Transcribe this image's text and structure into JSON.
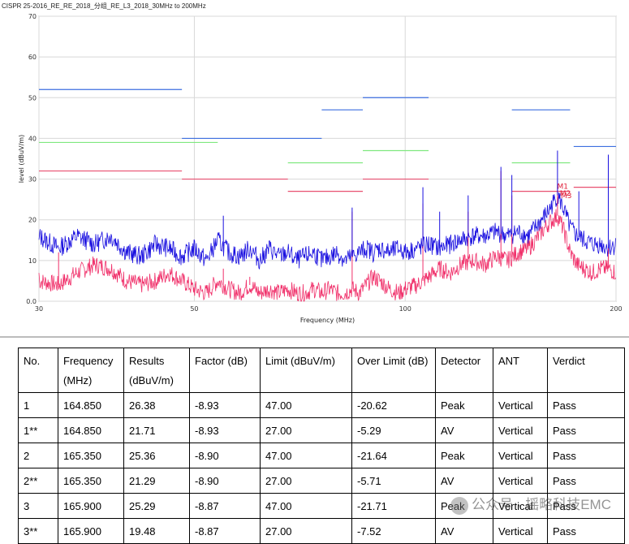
{
  "chart_data": {
    "type": "line",
    "title": "CISPR 25-2016_RE_RE_2018_分组_RE_L3_2018_30MHz to 200MHz",
    "xlabel": "Frequency (MHz)",
    "ylabel": "level (dBuV/m)",
    "x_scale": "log",
    "xlim": [
      30,
      200
    ],
    "ylim": [
      0,
      70
    ],
    "x_ticks": [
      "30",
      "50",
      "100",
      "200"
    ],
    "x_tick_values": [
      30,
      50,
      100,
      200
    ],
    "y_ticks": [
      "0.0",
      "10",
      "20",
      "30",
      "40",
      "50",
      "60",
      "70"
    ],
    "y_tick_values": [
      0,
      10,
      20,
      30,
      40,
      50,
      60,
      70
    ],
    "grid": true,
    "peak_limit_segments": [
      {
        "x": [
          30,
          48
        ],
        "y": 52
      },
      {
        "x": [
          48,
          76
        ],
        "y": 40
      },
      {
        "x": [
          76,
          87
        ],
        "y": 47
      },
      {
        "x": [
          87,
          108
        ],
        "y": 50
      },
      {
        "x": [
          142,
          172
        ],
        "y": 47
      },
      {
        "x": [
          174,
          200
        ],
        "y": 38
      }
    ],
    "quasi_peak_limit_segments": [
      {
        "x": [
          30,
          54
        ],
        "y": 39
      },
      {
        "x": [
          68,
          87
        ],
        "y": 34
      },
      {
        "x": [
          87,
          108
        ],
        "y": 37
      },
      {
        "x": [
          142,
          172
        ],
        "y": 34
      }
    ],
    "average_limit_segments": [
      {
        "x": [
          30,
          48
        ],
        "y": 32
      },
      {
        "x": [
          48,
          68
        ],
        "y": 30
      },
      {
        "x": [
          68,
          87
        ],
        "y": 27
      },
      {
        "x": [
          87,
          108
        ],
        "y": 30
      },
      {
        "x": [
          142,
          172
        ],
        "y": 27
      },
      {
        "x": [
          174,
          200
        ],
        "y": 28
      }
    ],
    "peak_trace": [
      [
        30,
        16
      ],
      [
        32,
        13
      ],
      [
        34,
        16
      ],
      [
        36,
        14
      ],
      [
        38,
        16
      ],
      [
        40,
        12
      ],
      [
        42,
        11
      ],
      [
        44,
        14
      ],
      [
        46,
        13
      ],
      [
        48,
        11
      ],
      [
        50,
        13
      ],
      [
        52,
        10
      ],
      [
        54,
        15
      ],
      [
        56,
        12
      ],
      [
        58,
        11
      ],
      [
        60,
        13
      ],
      [
        62,
        10
      ],
      [
        64,
        13
      ],
      [
        66,
        11
      ],
      [
        68,
        12
      ],
      [
        70,
        10
      ],
      [
        72,
        11
      ],
      [
        74,
        12
      ],
      [
        76,
        10
      ],
      [
        78,
        11
      ],
      [
        80,
        12
      ],
      [
        82,
        10
      ],
      [
        84,
        11
      ],
      [
        86,
        12
      ],
      [
        88,
        13
      ],
      [
        90,
        12
      ],
      [
        92,
        13
      ],
      [
        95,
        12
      ],
      [
        98,
        13
      ],
      [
        100,
        12
      ],
      [
        104,
        13
      ],
      [
        108,
        14
      ],
      [
        112,
        13
      ],
      [
        116,
        14
      ],
      [
        120,
        15
      ],
      [
        125,
        16
      ],
      [
        130,
        16
      ],
      [
        135,
        17
      ],
      [
        140,
        16
      ],
      [
        145,
        17
      ],
      [
        150,
        16
      ],
      [
        155,
        19
      ],
      [
        160,
        22
      ],
      [
        165,
        26
      ],
      [
        168,
        23
      ],
      [
        172,
        18
      ],
      [
        176,
        16
      ],
      [
        180,
        15
      ],
      [
        185,
        14
      ],
      [
        190,
        14
      ],
      [
        195,
        13
      ],
      [
        200,
        14
      ]
    ],
    "peak_spikes": [
      [
        55,
        21
      ],
      [
        84,
        23
      ],
      [
        106,
        28
      ],
      [
        112,
        22
      ],
      [
        123,
        26
      ],
      [
        137,
        33
      ],
      [
        142,
        31
      ],
      [
        165,
        37
      ],
      [
        177,
        27
      ],
      [
        195,
        36
      ]
    ],
    "average_trace": [
      [
        30,
        5
      ],
      [
        32,
        4
      ],
      [
        34,
        7
      ],
      [
        36,
        9
      ],
      [
        38,
        8
      ],
      [
        40,
        5
      ],
      [
        42,
        4
      ],
      [
        44,
        5
      ],
      [
        46,
        7
      ],
      [
        48,
        5
      ],
      [
        50,
        3
      ],
      [
        52,
        2
      ],
      [
        54,
        5
      ],
      [
        56,
        3
      ],
      [
        58,
        2
      ],
      [
        60,
        4
      ],
      [
        62,
        2
      ],
      [
        64,
        3
      ],
      [
        66,
        2
      ],
      [
        68,
        3
      ],
      [
        70,
        2
      ],
      [
        72,
        2
      ],
      [
        74,
        3
      ],
      [
        76,
        2
      ],
      [
        78,
        3
      ],
      [
        80,
        2
      ],
      [
        82,
        2
      ],
      [
        84,
        3
      ],
      [
        86,
        2
      ],
      [
        88,
        4
      ],
      [
        90,
        6
      ],
      [
        92,
        5
      ],
      [
        95,
        3
      ],
      [
        98,
        2
      ],
      [
        100,
        3
      ],
      [
        104,
        4
      ],
      [
        108,
        6
      ],
      [
        112,
        8
      ],
      [
        116,
        7
      ],
      [
        120,
        9
      ],
      [
        125,
        10
      ],
      [
        130,
        9
      ],
      [
        135,
        11
      ],
      [
        140,
        10
      ],
      [
        145,
        12
      ],
      [
        150,
        13
      ],
      [
        155,
        16
      ],
      [
        160,
        19
      ],
      [
        165,
        21
      ],
      [
        168,
        18
      ],
      [
        172,
        12
      ],
      [
        176,
        9
      ],
      [
        180,
        8
      ],
      [
        185,
        7
      ],
      [
        190,
        8
      ],
      [
        195,
        8
      ],
      [
        200,
        7
      ]
    ],
    "average_spikes": [
      [
        32,
        12
      ],
      [
        36,
        10
      ],
      [
        55,
        8
      ],
      [
        60,
        6
      ],
      [
        84,
        22
      ],
      [
        106,
        24
      ],
      [
        123,
        22
      ],
      [
        137,
        32
      ],
      [
        142,
        26
      ],
      [
        165,
        28
      ],
      [
        195,
        28
      ]
    ],
    "markers": [
      {
        "label": "M1",
        "x": 164.85,
        "y": 26.38
      },
      {
        "label": "M2",
        "x": 165.35,
        "y": 25.36
      },
      {
        "label": "M3",
        "x": 165.9,
        "y": 25.29
      }
    ],
    "colors": {
      "peak_trace": "#1a10e0",
      "average_trace": "#f0306a",
      "peak_limit": "#3d6fe0",
      "quasi_peak_limit": "#7fe87f",
      "average_limit": "#e85070",
      "grid": "#d8d8d8"
    }
  },
  "table": {
    "headers": [
      {
        "line1": "No.",
        "line2": ""
      },
      {
        "line1": "Frequency",
        "line2": "(MHz)"
      },
      {
        "line1": "Results",
        "line2": "(dBuV/m)"
      },
      {
        "line1": "Factor (dB)",
        "line2": ""
      },
      {
        "line1": "Limit (dBuV/m)",
        "line2": ""
      },
      {
        "line1": "Over Limit (dB)",
        "line2": ""
      },
      {
        "line1": "Detector",
        "line2": ""
      },
      {
        "line1": "ANT",
        "line2": ""
      },
      {
        "line1": "Verdict",
        "line2": ""
      }
    ],
    "rows": [
      [
        "1",
        "164.850",
        "26.38",
        "-8.93",
        "47.00",
        "-20.62",
        "Peak",
        "Vertical",
        "Pass"
      ],
      [
        "1**",
        "164.850",
        "21.71",
        "-8.93",
        "27.00",
        "-5.29",
        "AV",
        "Vertical",
        "Pass"
      ],
      [
        "2",
        "165.350",
        "25.36",
        "-8.90",
        "47.00",
        "-21.64",
        "Peak",
        "Vertical",
        "Pass"
      ],
      [
        "2**",
        "165.350",
        "21.29",
        "-8.90",
        "27.00",
        "-5.71",
        "AV",
        "Vertical",
        "Pass"
      ],
      [
        "3",
        "165.900",
        "25.29",
        "-8.87",
        "47.00",
        "-21.71",
        "Peak",
        "Vertical",
        "Pass"
      ],
      [
        "3**",
        "165.900",
        "19.48",
        "-8.87",
        "27.00",
        "-7.52",
        "AV",
        "Vertical",
        "Pass"
      ]
    ]
  },
  "watermark": {
    "text": "公众号 · 摇略科技EMC"
  }
}
